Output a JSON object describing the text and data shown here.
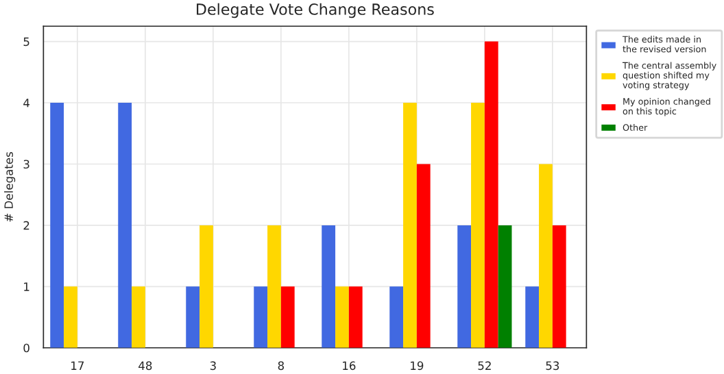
{
  "chart_data": {
    "type": "bar",
    "title": "Delegate Vote Change Reasons",
    "ylabel": "# Delegates",
    "categories": [
      "17",
      "48",
      "3",
      "8",
      "16",
      "19",
      "52",
      "53"
    ],
    "series": [
      {
        "name": "The edits made in\nthe revised version",
        "color": "#4169e1",
        "values": [
          4,
          4,
          1,
          1,
          2,
          1,
          2,
          1
        ]
      },
      {
        "name": "The central assembly\nquestion shifted my\nvoting strategy",
        "color": "#ffd700",
        "values": [
          1,
          1,
          2,
          2,
          1,
          4,
          4,
          3
        ]
      },
      {
        "name": "My opinion changed\non this topic",
        "color": "#ff0000",
        "values": [
          null,
          null,
          null,
          1,
          1,
          3,
          5,
          2
        ]
      },
      {
        "name": "Other",
        "color": "#008000",
        "values": [
          null,
          null,
          null,
          null,
          null,
          null,
          2,
          null
        ]
      }
    ],
    "ylim": [
      0,
      5.25
    ],
    "yticks": [
      0,
      1,
      2,
      3,
      4,
      5
    ],
    "grid": true,
    "legend": "top right"
  }
}
